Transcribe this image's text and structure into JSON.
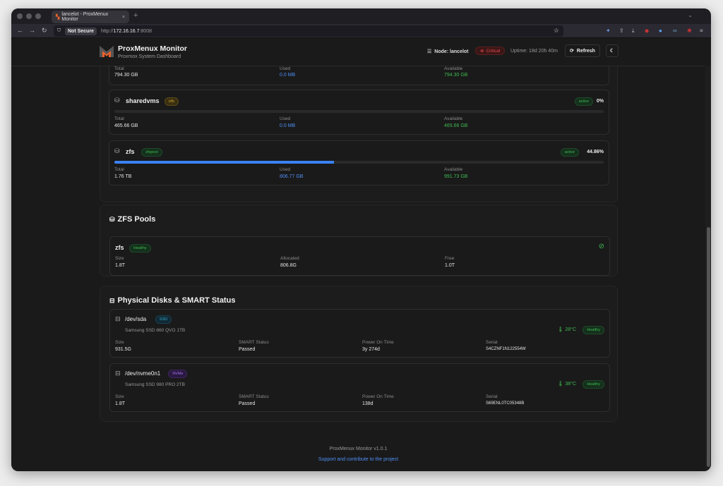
{
  "browser": {
    "tab_title": "lancelot - ProxMenux Monitor",
    "security": "Not Secure",
    "url_host": "172.16.16.7",
    "url_prefix": "http://",
    "url_port": ":8008"
  },
  "header": {
    "title": "ProxMenux Monitor",
    "subtitle": "Proxmox System Dashboard",
    "node": "Node: lancelot",
    "status": "Critical",
    "uptime": "Uptime: 18d 20h 40m",
    "refresh": "Refresh"
  },
  "storage": {
    "partial": {
      "total_label": "Total",
      "total": "794.30 GB",
      "used_label": "Used",
      "used": "0.0 MB",
      "avail_label": "Available",
      "avail": "794.30 GB"
    },
    "items": [
      {
        "name": "sharedvms",
        "type": "cifs",
        "state": "active",
        "percent": "0%",
        "usage": 0,
        "total_label": "Total",
        "total": "465.66 GB",
        "used_label": "Used",
        "used": "0.0 MB",
        "avail_label": "Available",
        "avail": "465.66 GB"
      },
      {
        "name": "zfs",
        "type": "zfspool",
        "state": "active",
        "percent": "44.86%",
        "usage": 44.86,
        "total_label": "Total",
        "total": "1.76 TB",
        "used_label": "Used",
        "used": "806.77 GB",
        "avail_label": "Available",
        "avail": "991.73 GB"
      }
    ]
  },
  "zfs": {
    "title": "ZFS Pools",
    "pool": {
      "name": "zfs",
      "health": "Healthy",
      "size_label": "Size",
      "size": "1.8T",
      "alloc_label": "Allocated",
      "alloc": "806.8G",
      "free_label": "Free",
      "free": "1.0T"
    }
  },
  "disks": {
    "title": "Physical Disks & SMART Status",
    "items": [
      {
        "dev": "/dev/sda",
        "type": "SSD",
        "model": "Samsung SSD 860 QVO 1TB",
        "temp": "28°C",
        "health": "Healthy",
        "size_label": "Size",
        "size": "931.5G",
        "smart_label": "SMART Status",
        "smart": "Passed",
        "pot_label": "Power On Time",
        "pot": "3y 274d",
        "serial_label": "Serial",
        "serial": "S4CZNF1N122554W"
      },
      {
        "dev": "/dev/nvme0n1",
        "type": "NVMe",
        "model": "Samsung SSD 980 PRO 2TB",
        "temp": "38°C",
        "health": "Healthy",
        "size_label": "Size",
        "size": "1.8T",
        "smart_label": "SMART Status",
        "smart": "Passed",
        "pot_label": "Power On Time",
        "pot": "138d",
        "serial_label": "Serial",
        "serial": "S69ENL0TC05348B"
      }
    ]
  },
  "footer": {
    "version": "ProxMenux Monitor v1.0.1",
    "link": "Support and contribute to the project"
  }
}
